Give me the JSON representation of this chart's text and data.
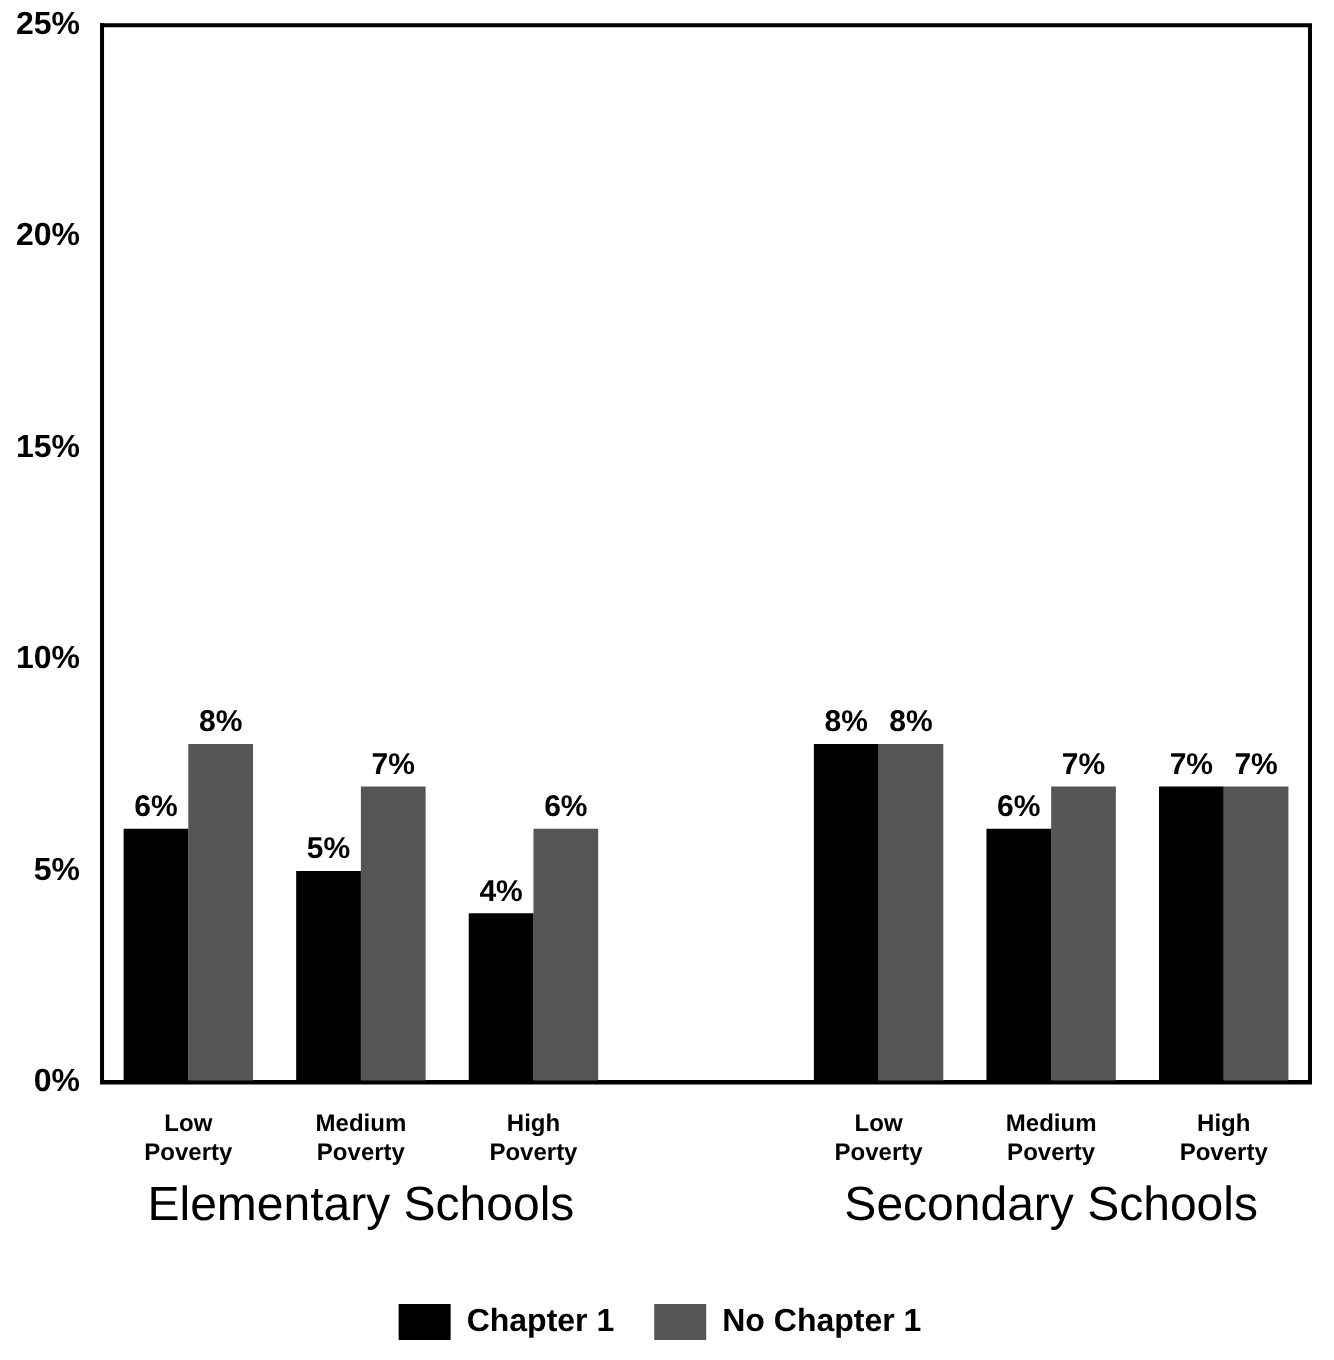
{
  "chart_data": {
    "type": "bar",
    "categories": [
      "Low Poverty",
      "Medium Poverty",
      "High Poverty",
      null,
      "Low Poverty",
      "Medium Poverty",
      "High Poverty"
    ],
    "series": [
      {
        "name": "Chapter 1",
        "color": "#000000",
        "values": [
          6,
          5,
          4,
          null,
          8,
          6,
          7
        ],
        "value_labels": [
          "6%",
          "5%",
          "4%",
          null,
          "8%",
          "6%",
          "7%"
        ]
      },
      {
        "name": "No Chapter 1",
        "color": "#555555",
        "values": [
          8,
          7,
          6,
          null,
          8,
          7,
          7
        ],
        "value_labels": [
          "8%",
          "7%",
          "6%",
          null,
          "8%",
          "7%",
          "7%"
        ]
      }
    ],
    "ylim": [
      0,
      25
    ],
    "yticks": [
      {
        "value": 0,
        "label": "0%"
      },
      {
        "value": 5,
        "label": "5%"
      },
      {
        "value": 10,
        "label": "10%"
      },
      {
        "value": 15,
        "label": "15%"
      },
      {
        "value": 20,
        "label": "20%"
      },
      {
        "value": 25,
        "label": "25%"
      }
    ],
    "grid": false,
    "legend": "bottom",
    "annotations": [
      "Elementary Schools",
      "Secondary Schools"
    ]
  }
}
